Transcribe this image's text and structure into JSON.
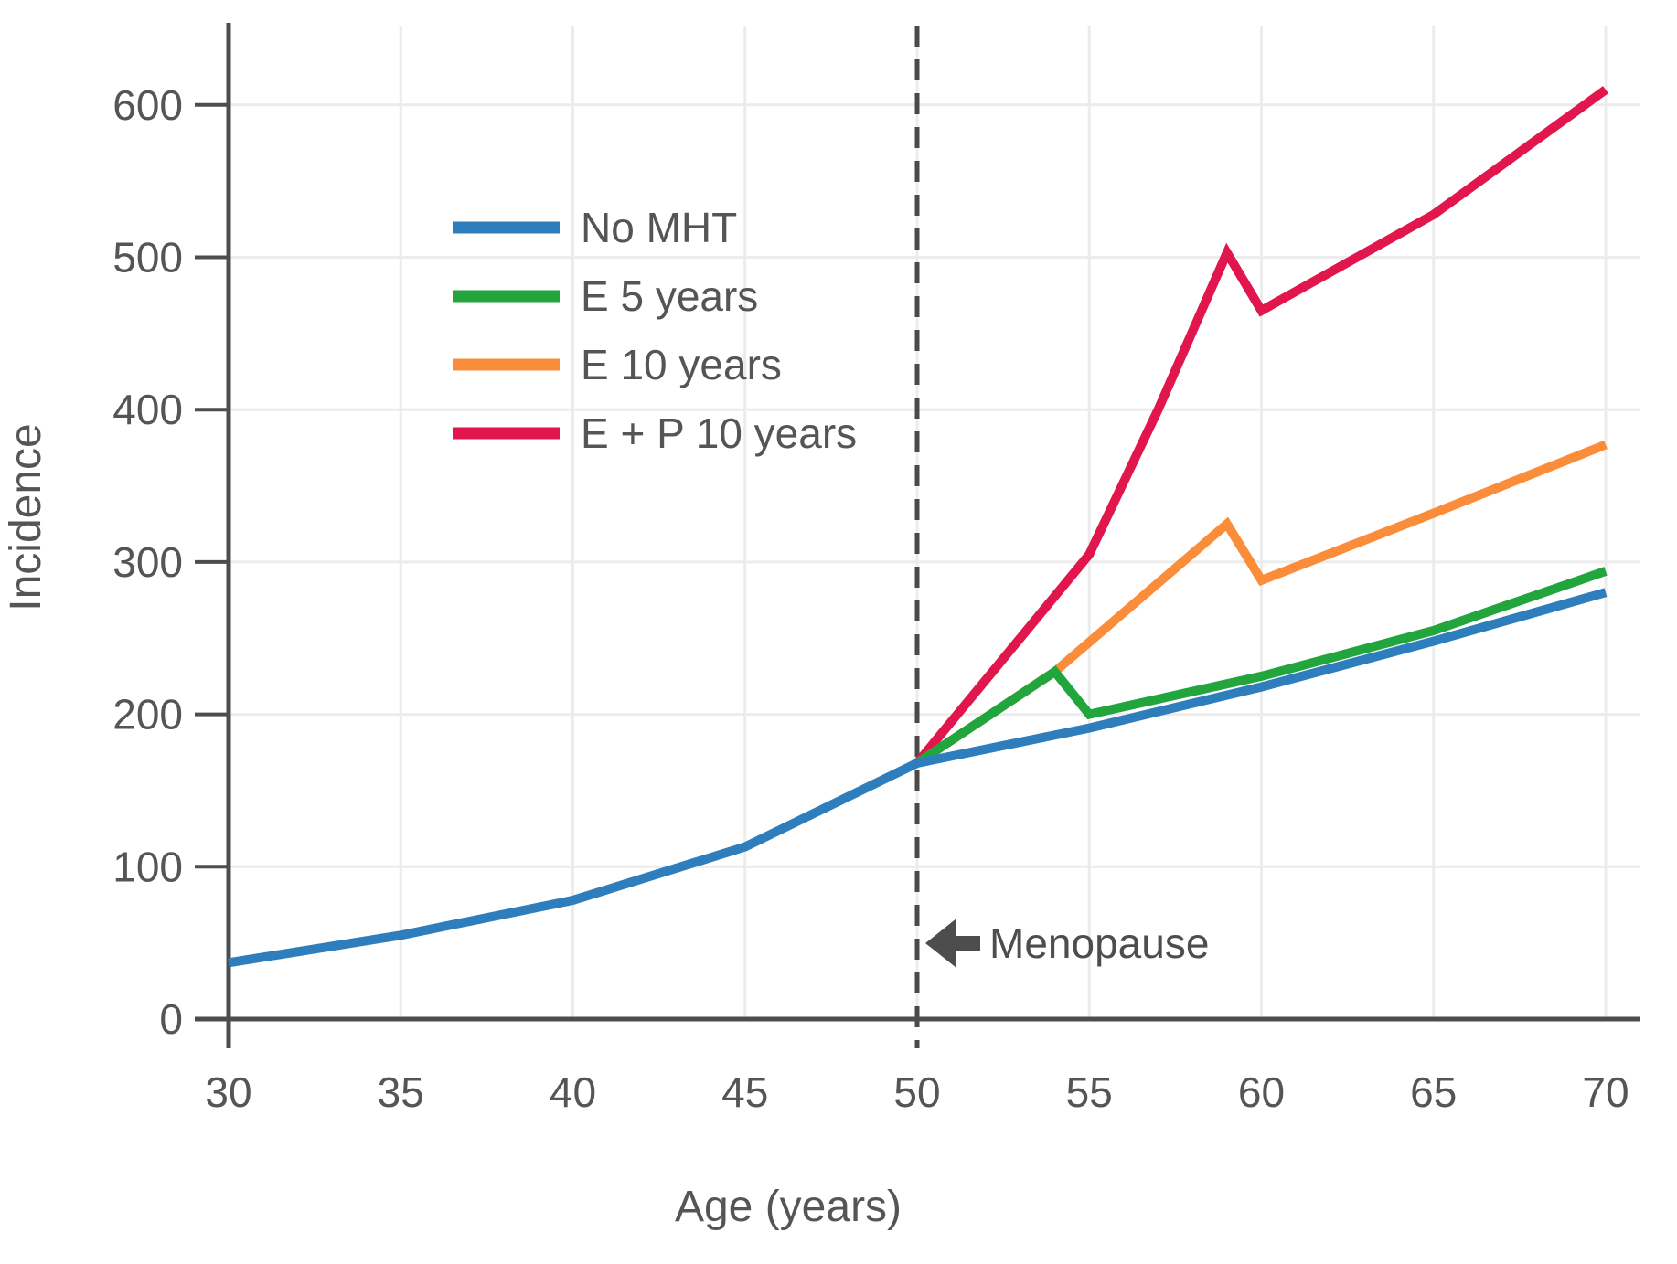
{
  "chart_data": {
    "type": "line",
    "title": "",
    "xlabel": "Age (years)",
    "ylabel": "Incidence",
    "xlim": [
      30,
      70.9
    ],
    "ylim": [
      0,
      652
    ],
    "xticks": [
      30,
      35,
      40,
      45,
      50,
      55,
      60,
      65,
      70
    ],
    "yticks": [
      0,
      100,
      200,
      300,
      400,
      500,
      600
    ],
    "grid": true,
    "legend_position": "upper-left-inside",
    "series": [
      {
        "name": "No MHT",
        "color": "#2e7ebd",
        "points": [
          [
            30,
            37
          ],
          [
            35,
            55
          ],
          [
            40,
            78
          ],
          [
            45,
            113
          ],
          [
            50,
            168
          ],
          [
            55,
            191
          ],
          [
            60,
            218
          ],
          [
            65,
            248
          ],
          [
            70,
            280
          ]
        ]
      },
      {
        "name": "E 5 years",
        "color": "#21a53c",
        "points": [
          [
            50,
            168
          ],
          [
            54,
            228
          ],
          [
            55,
            200
          ],
          [
            60,
            225
          ],
          [
            65,
            255
          ],
          [
            70,
            294
          ]
        ]
      },
      {
        "name": "E 10 years",
        "color": "#fb8c3a",
        "points": [
          [
            50,
            168
          ],
          [
            54,
            228
          ],
          [
            59,
            325
          ],
          [
            60,
            288
          ],
          [
            65,
            332
          ],
          [
            70,
            377
          ]
        ]
      },
      {
        "name": "E + P 10 years",
        "color": "#e0164d",
        "points": [
          [
            50,
            168
          ],
          [
            55,
            305
          ],
          [
            57,
            400
          ],
          [
            59,
            503
          ],
          [
            60,
            465
          ],
          [
            65,
            528
          ],
          [
            70,
            610
          ]
        ]
      }
    ],
    "annotations": [
      {
        "type": "vline",
        "x": 50,
        "style": "dashed",
        "color": "#4a4a4a"
      },
      {
        "type": "text-arrow",
        "label": "Menopause",
        "x": 50,
        "y": 50,
        "direction": "left",
        "color": "#4d4d4d"
      }
    ],
    "style": {
      "grid_color": "#ececec",
      "axis_color": "#4d4d4d",
      "text_color": "#555555",
      "background": "#ffffff"
    }
  }
}
